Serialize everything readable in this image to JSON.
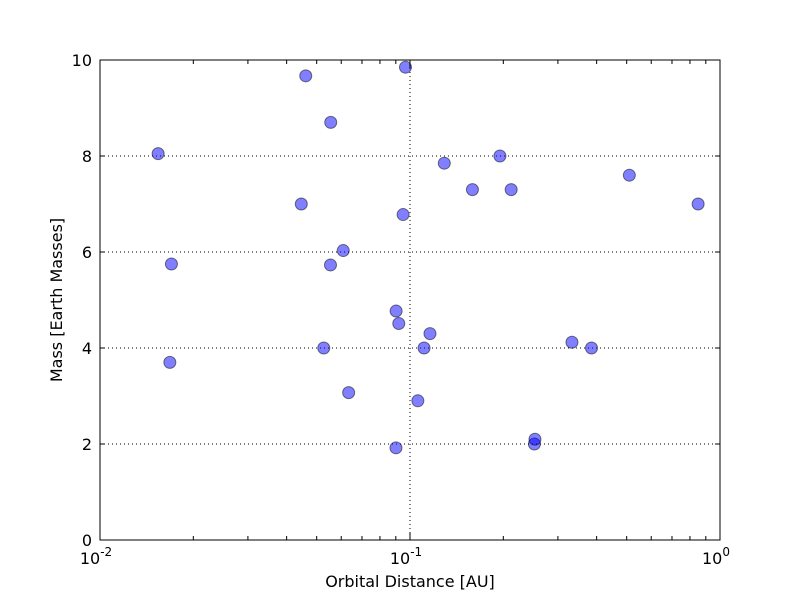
{
  "chart_data": {
    "type": "scatter",
    "title": "",
    "xlabel": "Orbital Distance [AU]",
    "ylabel": "Mass [Earth Masses]",
    "xscale": "log",
    "xlim": [
      0.01,
      1
    ],
    "ylim": [
      0,
      10
    ],
    "grid": true,
    "grid_style": "dotted",
    "point_color": "#0000ff",
    "x_ticks": [
      {
        "value": 0.01,
        "base": "10",
        "exp": "-2"
      },
      {
        "value": 0.1,
        "base": "10",
        "exp": "-1"
      },
      {
        "value": 1,
        "base": "10",
        "exp": "0"
      }
    ],
    "y_ticks": [
      {
        "value": 0,
        "label": "0"
      },
      {
        "value": 2,
        "label": "2"
      },
      {
        "value": 4,
        "label": "4"
      },
      {
        "value": 6,
        "label": "6"
      },
      {
        "value": 8,
        "label": "8"
      },
      {
        "value": 10,
        "label": "10"
      }
    ],
    "points": [
      {
        "x": 0.0154,
        "y": 8.05
      },
      {
        "x": 0.017,
        "y": 5.75
      },
      {
        "x": 0.0168,
        "y": 3.7
      },
      {
        "x": 0.0446,
        "y": 7.0
      },
      {
        "x": 0.0461,
        "y": 9.67
      },
      {
        "x": 0.0527,
        "y": 4.0
      },
      {
        "x": 0.0554,
        "y": 5.73
      },
      {
        "x": 0.0555,
        "y": 8.7
      },
      {
        "x": 0.0609,
        "y": 6.03
      },
      {
        "x": 0.0634,
        "y": 3.07
      },
      {
        "x": 0.0902,
        "y": 4.77
      },
      {
        "x": 0.0901,
        "y": 1.92
      },
      {
        "x": 0.092,
        "y": 4.51
      },
      {
        "x": 0.095,
        "y": 6.78
      },
      {
        "x": 0.0967,
        "y": 9.85
      },
      {
        "x": 0.106,
        "y": 2.9
      },
      {
        "x": 0.111,
        "y": 4.0
      },
      {
        "x": 0.116,
        "y": 4.3
      },
      {
        "x": 0.129,
        "y": 7.85
      },
      {
        "x": 0.159,
        "y": 7.3
      },
      {
        "x": 0.195,
        "y": 8.0
      },
      {
        "x": 0.212,
        "y": 7.3
      },
      {
        "x": 0.252,
        "y": 2.0
      },
      {
        "x": 0.253,
        "y": 2.1
      },
      {
        "x": 0.333,
        "y": 4.12
      },
      {
        "x": 0.385,
        "y": 4.0
      },
      {
        "x": 0.51,
        "y": 7.6
      },
      {
        "x": 0.85,
        "y": 7.0
      }
    ]
  }
}
